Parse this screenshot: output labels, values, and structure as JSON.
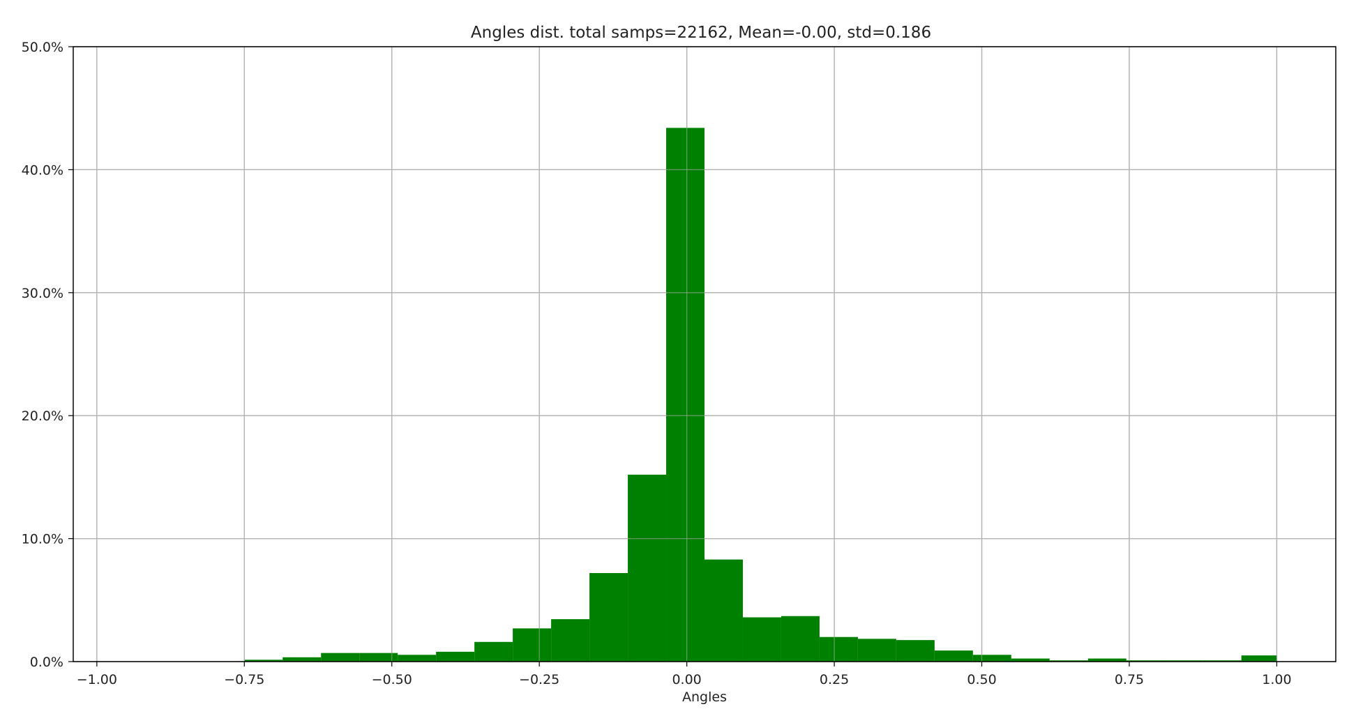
{
  "chart_data": {
    "type": "bar",
    "title": "Angles dist. total samps=22162, Mean=-0.00, std=0.186",
    "xlabel": "Angles",
    "ylabel": "",
    "xlim": [
      -1.04,
      1.1
    ],
    "ylim": [
      0,
      50
    ],
    "grid": true,
    "bar_color": "#008000",
    "bin_edges": [
      -0.75,
      -0.685,
      -0.62,
      -0.555,
      -0.49,
      -0.425,
      -0.36,
      -0.295,
      -0.23,
      -0.165,
      -0.1,
      -0.035,
      0.03,
      0.095,
      0.16,
      0.225,
      0.29,
      0.355,
      0.42,
      0.485,
      0.55,
      0.615,
      0.68,
      0.745,
      0.81,
      0.875,
      0.94,
      1.0
    ],
    "values": [
      0.15,
      0.35,
      0.7,
      0.7,
      0.55,
      0.8,
      1.6,
      2.7,
      3.45,
      7.2,
      15.2,
      43.4,
      8.3,
      3.6,
      3.7,
      2.0,
      1.85,
      1.75,
      0.9,
      0.55,
      0.25,
      0.1,
      0.25,
      0.1,
      0.1,
      0.1,
      0.5
    ],
    "x_ticks": [
      -1.0,
      -0.75,
      -0.5,
      -0.25,
      0.0,
      0.25,
      0.5,
      0.75,
      1.0
    ],
    "x_tick_labels": [
      "−1.00",
      "−0.75",
      "−0.50",
      "−0.25",
      "0.00",
      "0.25",
      "0.50",
      "0.75",
      "1.00"
    ],
    "y_ticks": [
      0,
      10,
      20,
      30,
      40,
      50
    ],
    "y_tick_labels": [
      "0.0%",
      "10.0%",
      "20.0%",
      "30.0%",
      "40.0%",
      "50.0%"
    ]
  }
}
